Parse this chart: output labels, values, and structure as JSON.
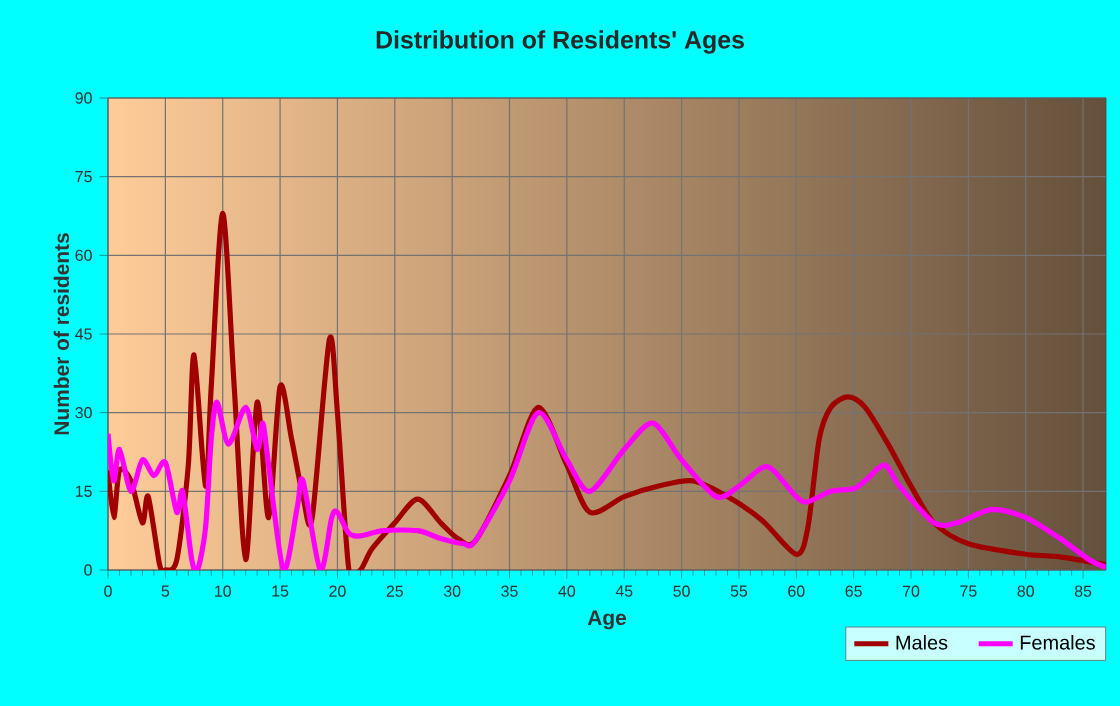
{
  "chart_data": {
    "type": "line",
    "title": "Distribution of Residents' Ages",
    "xlabel": "Age",
    "ylabel": "Number of residents",
    "xlim": [
      0,
      87
    ],
    "xticks": [
      0,
      5,
      10,
      15,
      20,
      25,
      30,
      35,
      40,
      45,
      50,
      55,
      60,
      65,
      70,
      75,
      80,
      85
    ],
    "ylim": [
      0,
      90
    ],
    "yticks": [
      0,
      15,
      30,
      45,
      60,
      75,
      90
    ],
    "grid": true,
    "legend": "bottom right",
    "marker": "none",
    "line_style": "solid",
    "series": [
      {
        "name": "Males",
        "color": "#a00000",
        "x": [
          0,
          0.5,
          1,
          2,
          3,
          3.5,
          4.5,
          5,
          6,
          7,
          7.5,
          8.5,
          9,
          10,
          11,
          12,
          13,
          14,
          15,
          16,
          17,
          17.8,
          19.3,
          20,
          21,
          22,
          23,
          25,
          27,
          29,
          30.5,
          32,
          35,
          37.5,
          40,
          42,
          45,
          48,
          51,
          54,
          57,
          60,
          61,
          62,
          63,
          64.5,
          66,
          68,
          70,
          72,
          75,
          80,
          83,
          87
        ],
        "values": [
          19,
          10,
          19,
          17,
          9,
          14,
          1,
          0,
          2,
          20,
          41,
          16,
          35,
          68,
          35,
          2,
          32,
          10,
          35,
          25,
          14,
          10,
          44,
          30,
          0,
          0,
          4,
          9,
          13.5,
          9,
          6,
          5.5,
          18,
          31,
          20,
          11,
          14,
          16,
          17,
          14,
          9.5,
          3,
          8,
          25,
          31,
          33,
          31,
          24,
          16,
          9,
          5,
          3,
          2.5,
          1
        ]
      },
      {
        "name": "Females",
        "color": "#ff00ff",
        "x": [
          0,
          0.5,
          1,
          2,
          3,
          4,
          5,
          6,
          6.5,
          7.3,
          7.8,
          8.5,
          9,
          9.5,
          10.5,
          12,
          13,
          13.5,
          14,
          15.3,
          16.5,
          17,
          18.5,
          19.5,
          20,
          21,
          22,
          24,
          27,
          29,
          31,
          32,
          35,
          37.5,
          40,
          42,
          45,
          47.5,
          50,
          53,
          55,
          57,
          58,
          60,
          61,
          63,
          65,
          66,
          67.7,
          69,
          72,
          74,
          77,
          80,
          83,
          85.5,
          87
        ],
        "values": [
          26,
          17,
          23,
          15,
          21,
          18,
          20.5,
          11,
          15,
          2,
          0,
          8,
          25,
          32,
          24,
          31,
          23,
          28,
          20,
          0,
          12,
          17,
          0,
          10,
          11,
          7,
          6.5,
          7.5,
          7.5,
          6,
          5,
          5.5,
          17,
          30,
          21,
          15,
          23,
          28,
          21,
          14,
          16,
          19.5,
          19,
          14,
          13,
          15,
          15.5,
          17,
          20,
          16,
          9,
          9,
          11.5,
          10,
          6,
          2,
          0.5
        ]
      }
    ]
  }
}
